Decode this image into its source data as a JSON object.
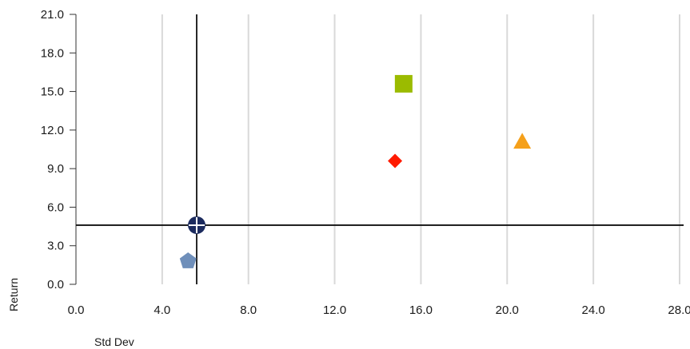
{
  "chart_data": {
    "type": "scatter",
    "xlabel": "Std Dev",
    "ylabel": "Return",
    "xlim": [
      0,
      28
    ],
    "ylim": [
      0,
      21
    ],
    "xticks": [
      "0.0",
      "4.0",
      "8.0",
      "12.0",
      "16.0",
      "20.0",
      "24.0",
      "28.0"
    ],
    "yticks": [
      "0.0",
      "3.0",
      "6.0",
      "9.0",
      "12.0",
      "15.0",
      "18.0",
      "21.0"
    ],
    "grid": "vertical",
    "reference_lines": {
      "x": 5.6,
      "y": 4.6
    },
    "points": [
      {
        "x": 5.6,
        "y": 4.6,
        "marker": "crosshair-circle",
        "color": "#1c2b5e"
      },
      {
        "x": 5.2,
        "y": 1.8,
        "marker": "pentagon",
        "color": "#6f8fba"
      },
      {
        "x": 14.8,
        "y": 9.6,
        "marker": "diamond",
        "color": "#ff1a00"
      },
      {
        "x": 15.2,
        "y": 15.6,
        "marker": "square",
        "color": "#9bbb00"
      },
      {
        "x": 20.7,
        "y": 11.1,
        "marker": "triangle",
        "color": "#f5a01a"
      }
    ]
  }
}
